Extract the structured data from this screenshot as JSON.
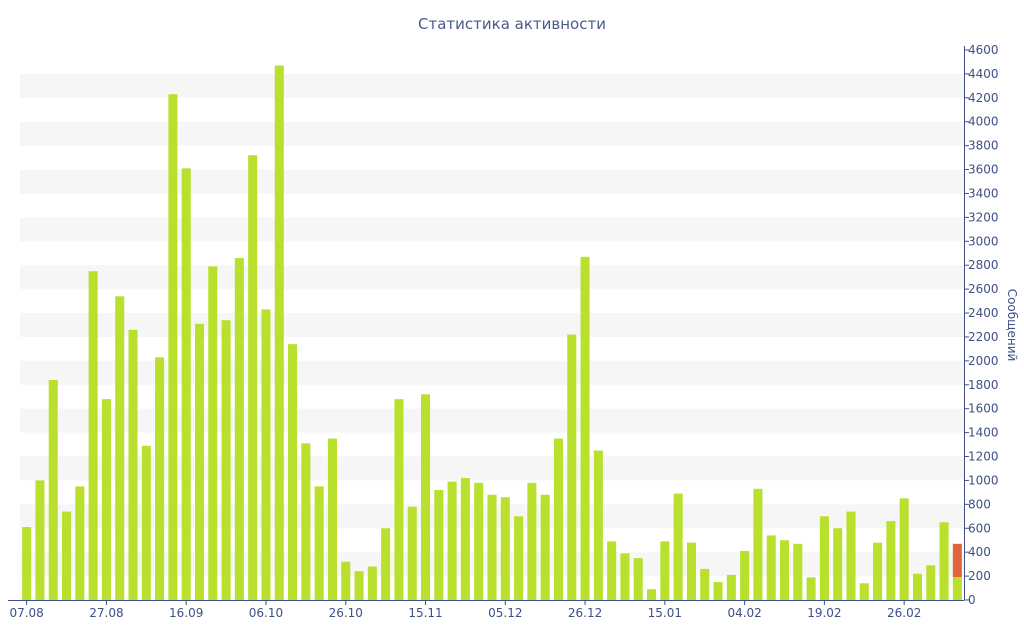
{
  "chart_data": {
    "type": "bar",
    "title": "Статистика активности",
    "ylabel": "Сообщений",
    "ylim": [
      0,
      4600
    ],
    "y_axis_position": "right",
    "y_ticks": [
      0,
      200,
      400,
      600,
      800,
      1000,
      1200,
      1400,
      1600,
      1800,
      2000,
      2200,
      2400,
      2600,
      2800,
      3000,
      3200,
      3400,
      3600,
      3800,
      4000,
      4200,
      4400,
      4600
    ],
    "x_tick_labels": [
      {
        "label": "07.08",
        "index": 0
      },
      {
        "label": "27.08",
        "index": 6
      },
      {
        "label": "16.09",
        "index": 12
      },
      {
        "label": "06.10",
        "index": 18
      },
      {
        "label": "26.10",
        "index": 24
      },
      {
        "label": "15.11",
        "index": 30
      },
      {
        "label": "05.12",
        "index": 36
      },
      {
        "label": "26.12",
        "index": 42
      },
      {
        "label": "15.01",
        "index": 48
      },
      {
        "label": "04.02",
        "index": 54
      },
      {
        "label": "19.02",
        "index": 60
      },
      {
        "label": "26.02",
        "index": 66
      }
    ],
    "grid": true,
    "colors": {
      "bar": "#b8e02c",
      "current": "#e2643c",
      "grid_band": "#f6f6f6",
      "axis": "#3f5085",
      "title": "#4a5a8e"
    },
    "values": [
      610,
      1000,
      1840,
      740,
      950,
      2750,
      1680,
      2540,
      2260,
      1290,
      2030,
      4230,
      3610,
      2310,
      2790,
      2340,
      2860,
      3720,
      2430,
      4470,
      2140,
      1310,
      950,
      1350,
      320,
      240,
      280,
      600,
      1680,
      780,
      1720,
      920,
      990,
      1020,
      980,
      880,
      860,
      700,
      980,
      880,
      1350,
      2220,
      2870,
      1250,
      490,
      390,
      350,
      90,
      490,
      890,
      480,
      260,
      150,
      210,
      410,
      930,
      540,
      500,
      470,
      190,
      700,
      600,
      740,
      140,
      480,
      660,
      850,
      220,
      290,
      650,
      460
    ],
    "last_bar": {
      "total": 470,
      "completed": 190
    }
  }
}
